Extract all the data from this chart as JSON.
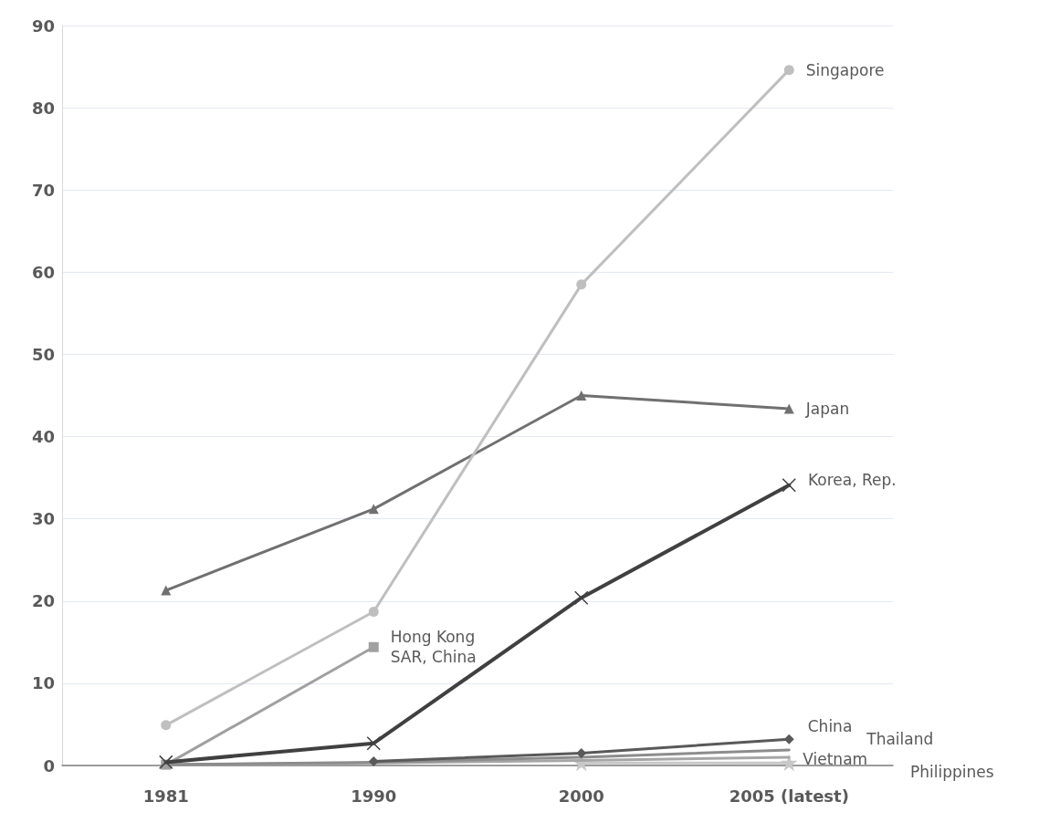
{
  "chart_data": {
    "type": "line",
    "categories": [
      "1981",
      "1990",
      "2000",
      "2005 (latest)"
    ],
    "ylim": [
      0,
      90
    ],
    "yticks": [
      0,
      10,
      20,
      30,
      40,
      50,
      60,
      70,
      80,
      90
    ],
    "grid": "y",
    "legend": false,
    "series": [
      {
        "name": "Singapore",
        "color": "#bfbfbf",
        "marker": "circle",
        "values": [
          4.9,
          18.7,
          58.5,
          84.6
        ]
      },
      {
        "name": "Japan",
        "color": "#707070",
        "marker": "triangle",
        "values": [
          21.3,
          31.2,
          45.0,
          43.4
        ]
      },
      {
        "name": "Korea, Rep.",
        "color": "#404040",
        "marker": "cross",
        "values": [
          0.4,
          2.7,
          20.4,
          34.1
        ]
      },
      {
        "name": "Hong Kong\nSAR, China",
        "color": "#a0a0a0",
        "marker": "square",
        "values": [
          0.1,
          14.4,
          null,
          null
        ]
      },
      {
        "name": "China",
        "color": "#595959",
        "marker": "diamond",
        "values": [
          null,
          0.5,
          1.5,
          3.2
        ]
      },
      {
        "name": "Thailand",
        "color": "#8c8c8c",
        "marker": "none",
        "values": [
          0.1,
          0.4,
          1.0,
          1.9
        ]
      },
      {
        "name": "Vietnam",
        "color": "#a6a6a6",
        "marker": "none",
        "values": [
          0.1,
          0.3,
          0.6,
          1.0
        ]
      },
      {
        "name": "Philippines",
        "color": "#c8c8c8",
        "marker": "star",
        "values": [
          null,
          null,
          0.3,
          0.3
        ]
      }
    ]
  }
}
